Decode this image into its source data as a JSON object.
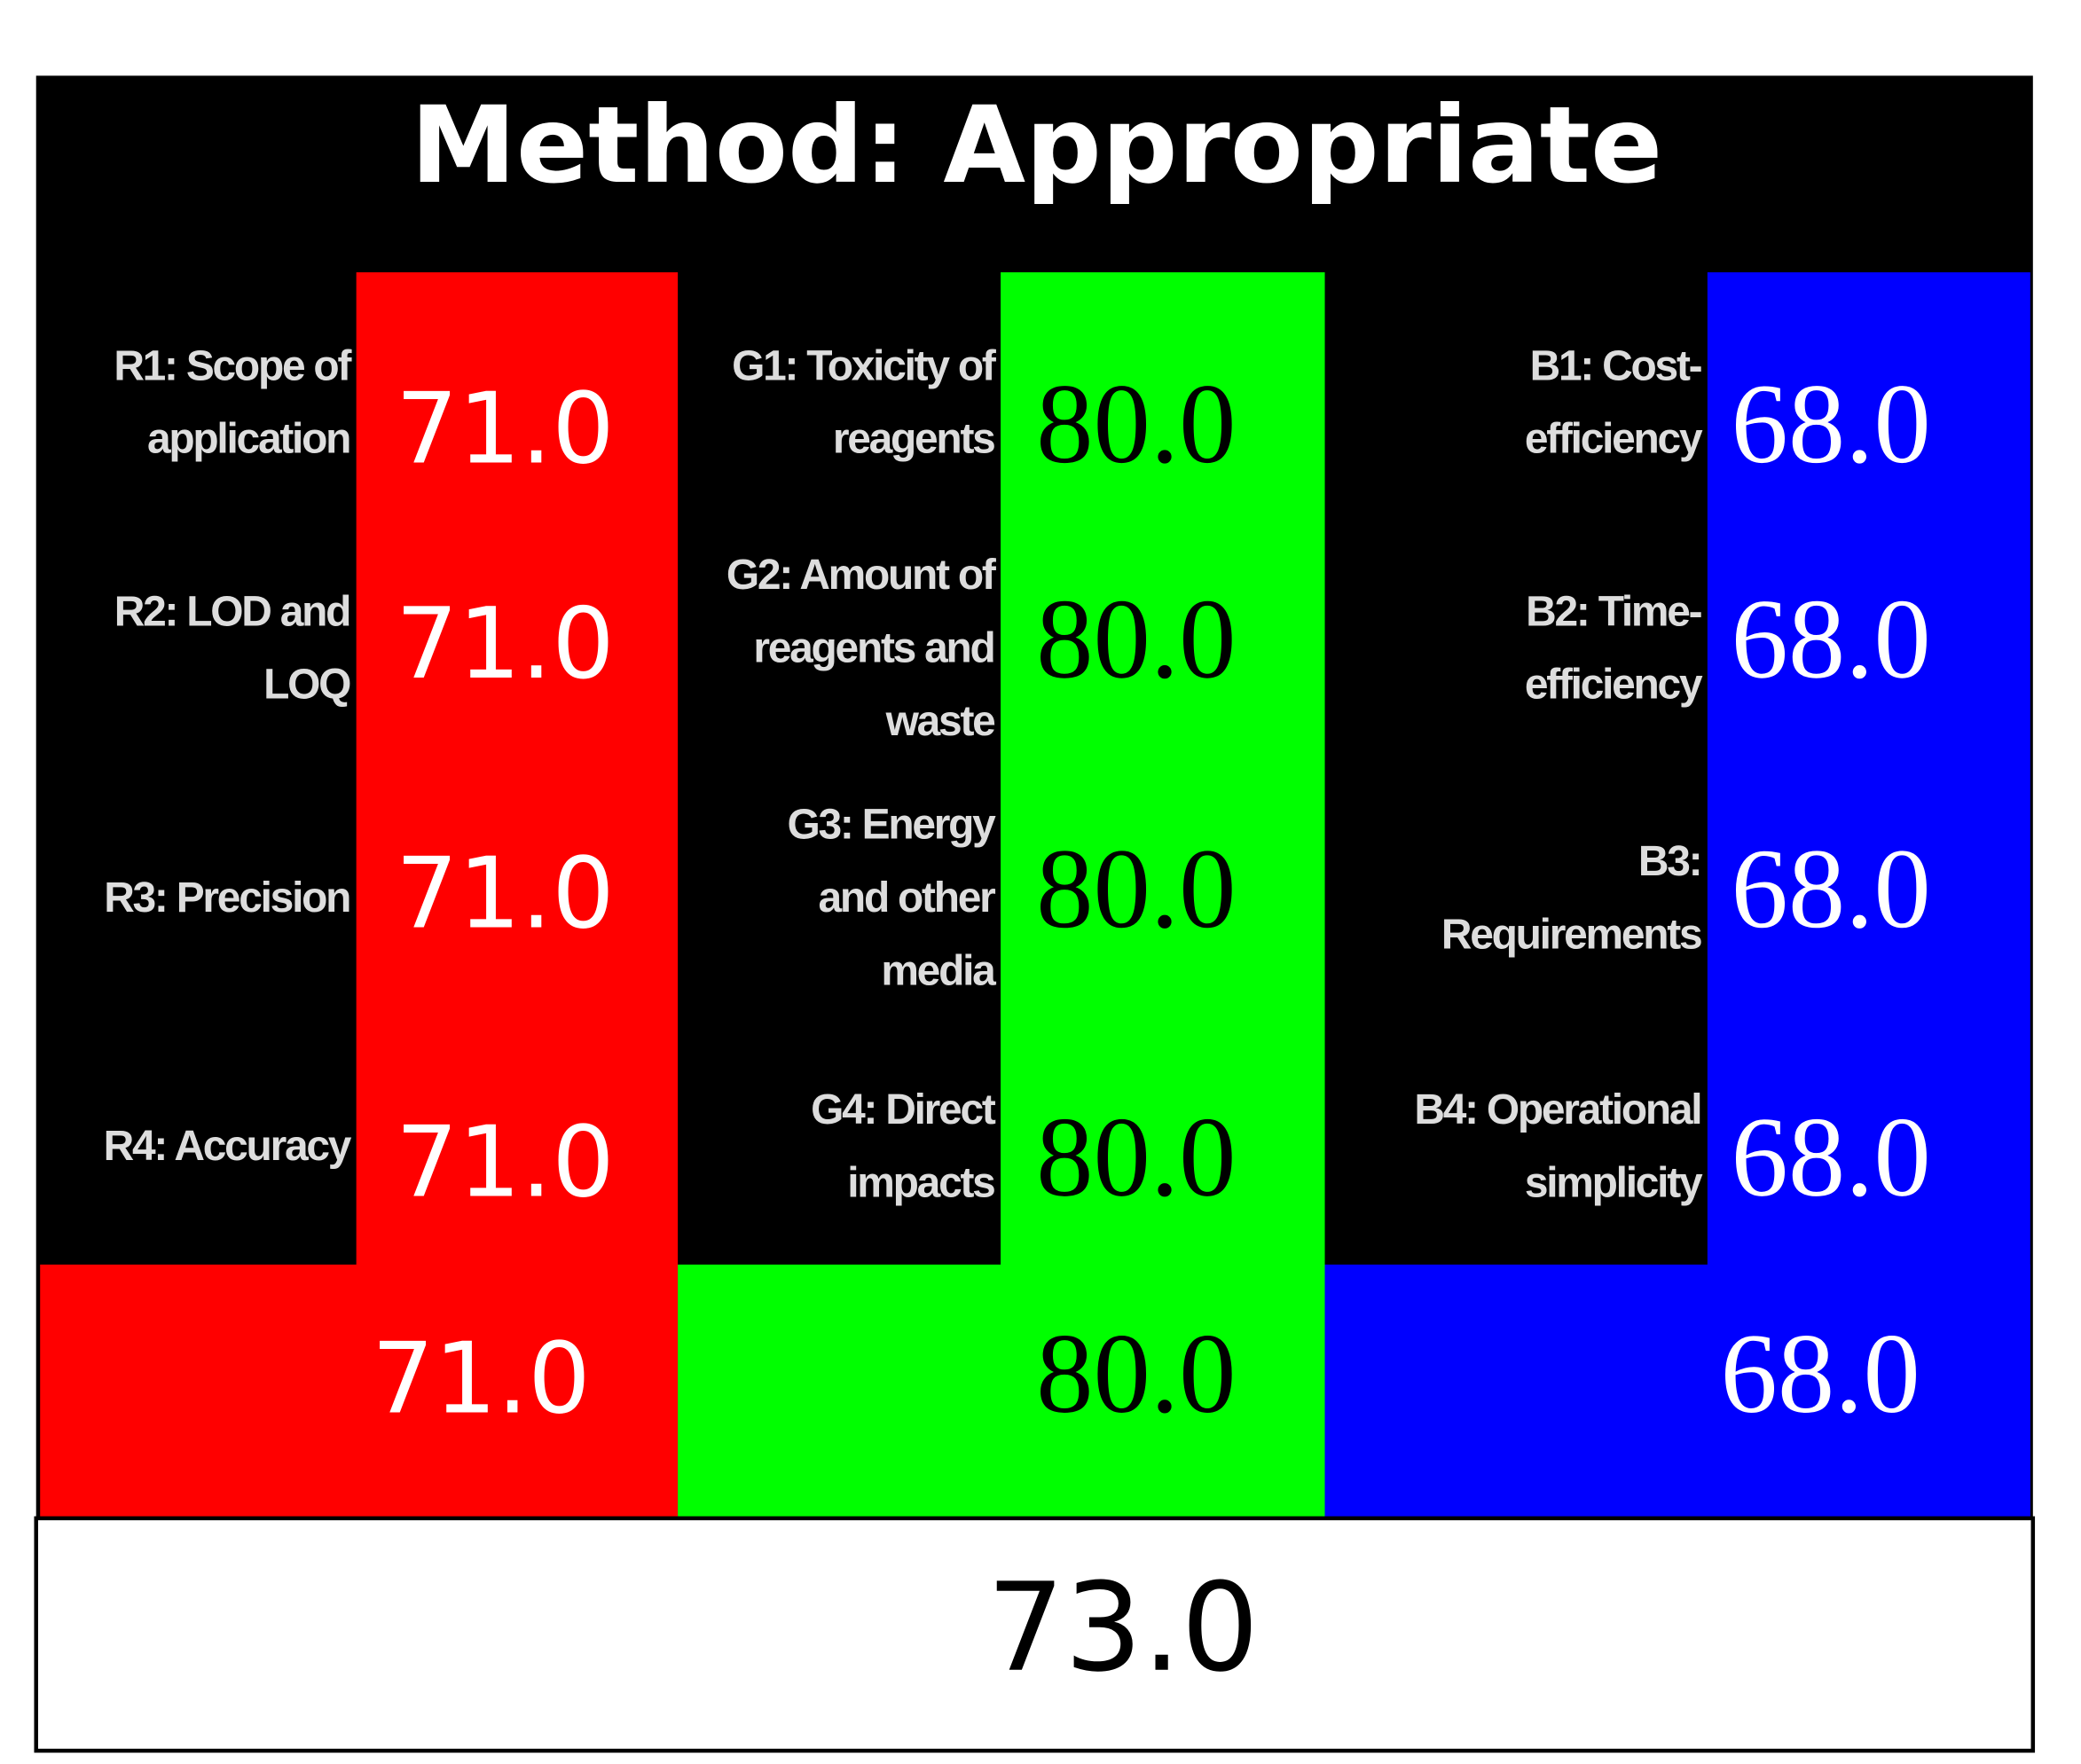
{
  "title": "Method: Appropriate",
  "columns": [
    {
      "color": "#ff0000",
      "text_color": "#ffffff",
      "criteria": [
        [
          "R1: Scope of",
          "application"
        ],
        [
          "R2: LOD and",
          "LOQ"
        ],
        [
          "R3: Precision"
        ],
        [
          "R4: Accuracy"
        ]
      ],
      "scores": [
        "71.0",
        "71.0",
        "71.0",
        "71.0"
      ],
      "total": "71.0"
    },
    {
      "color": "#00ff00",
      "text_color": "#000000",
      "criteria": [
        [
          "G1: Toxicity of",
          "reagents"
        ],
        [
          "G2: Amount of",
          "reagents and",
          "waste"
        ],
        [
          "G3: Energy",
          "and other",
          "media"
        ],
        [
          "G4: Direct",
          "impacts"
        ]
      ],
      "scores": [
        "80.0",
        "80.0",
        "80.0",
        "80.0"
      ],
      "total": "80.0"
    },
    {
      "color": "#0000ff",
      "text_color": "#ffffff",
      "criteria": [
        [
          "B1: Cost-",
          "efficiency"
        ],
        [
          "B2: Time-",
          "efficiency"
        ],
        [
          "B3:",
          "Requirements"
        ],
        [
          "B4: Operational",
          "simplicity"
        ]
      ],
      "scores": [
        "68.0",
        "68.0",
        "68.0",
        "68.0"
      ],
      "total": "68.0"
    }
  ],
  "overall": "73.0"
}
